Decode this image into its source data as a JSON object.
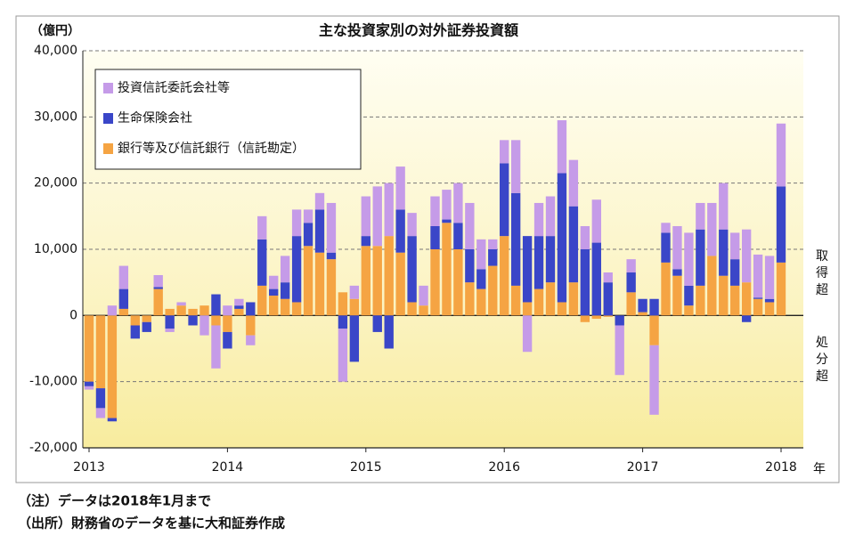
{
  "chart_data": {
    "type": "bar",
    "stacked": true,
    "title": "主な投資家別の対外証券投資額",
    "y_unit_label": "（億円）",
    "right_labels": [
      "取得超",
      "処分超"
    ],
    "x_unit_label": "年",
    "notes": [
      "（注）データは2018年1月まで",
      "（出所）財務省のデータを基に大和証券作成"
    ],
    "categories": [
      "2013",
      null,
      null,
      null,
      null,
      null,
      null,
      null,
      null,
      null,
      null,
      null,
      "2014",
      null,
      null,
      null,
      null,
      null,
      null,
      null,
      null,
      null,
      null,
      null,
      "2015",
      null,
      null,
      null,
      null,
      null,
      null,
      null,
      null,
      null,
      null,
      null,
      "2016",
      null,
      null,
      null,
      null,
      null,
      null,
      null,
      null,
      null,
      null,
      null,
      "2017",
      null,
      null,
      null,
      null,
      null,
      null,
      null,
      null,
      null,
      null,
      null,
      "2018"
    ],
    "series": [
      {
        "name": "銀行等及び信託銀行（信託勘定）",
        "color": "#f5a443",
        "values": [
          -10000,
          -11000,
          -15500,
          1000,
          -1500,
          -1000,
          4000,
          1000,
          1500,
          1000,
          1500,
          -1500,
          -2500,
          1000,
          -3000,
          4500,
          3000,
          2500,
          2000,
          10500,
          9500,
          8500,
          3500,
          2500,
          10500,
          10500,
          12000,
          9500,
          2000,
          1500,
          10000,
          14000,
          10000,
          5000,
          4000,
          7500,
          12000,
          4500,
          2000,
          4000,
          5000,
          2000,
          5000,
          -1000,
          -500,
          -200,
          0,
          3500,
          500,
          -4500,
          8000,
          6000,
          1500,
          4500,
          9000,
          6000,
          4500,
          5000,
          2500,
          2000,
          8000
        ]
      },
      {
        "name": "生命保険会社",
        "color": "#3a46c8",
        "values": [
          -700,
          -3000,
          -500,
          3000,
          -2000,
          -1500,
          300,
          -2000,
          0,
          -1500,
          0,
          3200,
          -2500,
          500,
          2000,
          7000,
          1000,
          2500,
          10000,
          3500,
          6500,
          1000,
          -2000,
          -7000,
          1500,
          -2500,
          -5000,
          6500,
          10000,
          0,
          3500,
          500,
          4000,
          5000,
          3000,
          2500,
          11000,
          14000,
          10000,
          8000,
          7000,
          19500,
          11500,
          10000,
          11000,
          5000,
          -1500,
          3000,
          2000,
          2500,
          4500,
          1000,
          3000,
          8500,
          0,
          7000,
          4000,
          -1000,
          200,
          500,
          11500
        ]
      },
      {
        "name": "投資信託委託会社等",
        "color": "#c59be8",
        "values": [
          -500,
          -1500,
          1500,
          3500,
          0,
          0,
          1800,
          -500,
          500,
          0,
          -3000,
          -6500,
          1500,
          1000,
          -1500,
          3500,
          2000,
          4000,
          4000,
          2000,
          2500,
          7500,
          -8000,
          2000,
          6000,
          9000,
          8000,
          6500,
          3500,
          3000,
          4500,
          4500,
          6000,
          7000,
          4500,
          1500,
          3500,
          8000,
          -5500,
          5000,
          6000,
          8000,
          7000,
          3500,
          6500,
          1500,
          -7500,
          2000,
          0,
          -10500,
          1500,
          6500,
          8000,
          4000,
          8000,
          7000,
          4000,
          8000,
          6500,
          6500,
          9500
        ]
      }
    ],
    "ylim": [
      -20000,
      40000
    ],
    "yticks": [
      {
        "value": -20000,
        "label": "-20,000"
      },
      {
        "value": -10000,
        "label": "-10,000"
      },
      0,
      {
        "value": 10000,
        "label": "10,000"
      },
      {
        "value": 20000,
        "label": "20,000"
      },
      {
        "value": 30000,
        "label": "30,000"
      },
      {
        "value": 40000,
        "label": "40,000"
      }
    ],
    "grid": true
  }
}
